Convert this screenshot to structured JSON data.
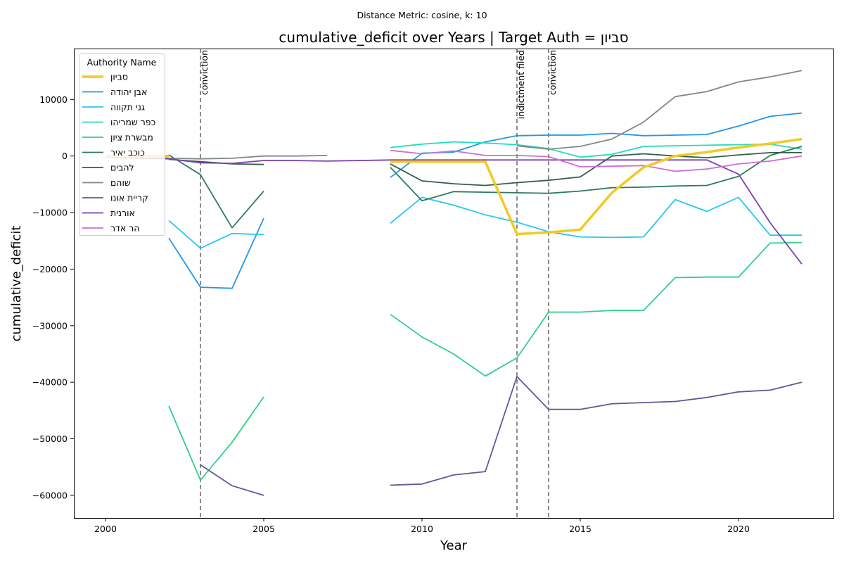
{
  "chart_data": {
    "type": "line",
    "suptitle": "Distance Metric: cosine, k: 10",
    "title": "cumulative_deficit over Years | Target Auth = סביון",
    "xlabel": "Year",
    "ylabel": "cumulative_deficit",
    "xlim": [
      1999,
      2023
    ],
    "ylim": [
      -64000,
      19000
    ],
    "xticks": [
      2000,
      2005,
      2010,
      2015,
      2020
    ],
    "yticks": [
      -60000,
      -50000,
      -40000,
      -30000,
      -20000,
      -10000,
      0,
      10000
    ],
    "legend": {
      "title": "Authority Name",
      "placement": "top-left"
    },
    "events": [
      {
        "x": 2003,
        "label": "conviction"
      },
      {
        "x": 2013,
        "label": "indictment filed"
      },
      {
        "x": 2014,
        "label": "conviction"
      }
    ],
    "series": [
      {
        "name": "סביון",
        "color": "#f2c925",
        "width": 3.5,
        "points": [
          [
            2000,
            0
          ],
          [
            2001,
            0
          ],
          [
            2002,
            0
          ],
          null,
          [
            2009,
            -1000
          ],
          [
            2010,
            -1000
          ],
          [
            2011,
            -1000
          ],
          [
            2012,
            -1000
          ],
          [
            2013,
            -13800
          ],
          [
            2014,
            -13500
          ],
          [
            2015,
            -13000
          ],
          [
            2016,
            -6500
          ],
          [
            2017,
            -2000
          ],
          [
            2018,
            0
          ],
          [
            2019,
            700
          ],
          [
            2020,
            1500
          ],
          [
            2021,
            2200
          ],
          [
            2022,
            3000
          ]
        ]
      },
      {
        "name": "אבן יהודה",
        "color": "#2196e8",
        "width": 1.8,
        "points": [
          [
            2002,
            -14500
          ],
          [
            2003,
            -23200
          ],
          [
            2004,
            -23400
          ],
          [
            2005,
            -11000
          ],
          null,
          [
            2009,
            -3800
          ],
          [
            2010,
            500
          ],
          [
            2011,
            700
          ],
          [
            2012,
            2500
          ],
          [
            2013,
            3600
          ],
          [
            2014,
            3700
          ],
          [
            2015,
            3700
          ],
          [
            2016,
            4000
          ],
          [
            2017,
            3600
          ],
          [
            2018,
            3700
          ],
          [
            2019,
            3800
          ],
          [
            2020,
            5300
          ],
          [
            2021,
            7000
          ],
          [
            2022,
            7600
          ]
        ]
      },
      {
        "name": "גני תקווה",
        "color": "#25c8f0",
        "width": 1.8,
        "points": [
          [
            2002,
            -11400
          ],
          [
            2003,
            -16300
          ],
          [
            2004,
            -13700
          ],
          [
            2005,
            -13900
          ],
          null,
          [
            2009,
            -11900
          ],
          [
            2010,
            -7300
          ],
          [
            2011,
            -8700
          ],
          [
            2012,
            -10400
          ],
          [
            2013,
            -11700
          ],
          [
            2014,
            -13400
          ],
          [
            2015,
            -14300
          ],
          [
            2016,
            -14400
          ],
          [
            2017,
            -14300
          ],
          [
            2018,
            -7700
          ],
          [
            2019,
            -9800
          ],
          [
            2020,
            -7300
          ],
          [
            2021,
            -14000
          ],
          [
            2022,
            -14000
          ]
        ]
      },
      {
        "name": "כפר שמריהו",
        "color": "#26dcbf",
        "width": 1.8,
        "points": [
          [
            2009,
            1500
          ],
          [
            2010,
            2100
          ],
          [
            2011,
            2500
          ],
          [
            2012,
            2300
          ],
          [
            2013,
            2000
          ],
          [
            2014,
            1300
          ],
          [
            2015,
            -200
          ],
          [
            2016,
            300
          ],
          [
            2017,
            1700
          ],
          [
            2018,
            1800
          ],
          [
            2019,
            1900
          ],
          [
            2020,
            2000
          ],
          [
            2021,
            2100
          ],
          [
            2022,
            1200
          ]
        ]
      },
      {
        "name": "מבשרת ציון",
        "color": "#2fd08a",
        "width": 1.8,
        "points": [
          [
            2002,
            -44200
          ],
          [
            2003,
            -57300
          ],
          [
            2004,
            -50600
          ],
          [
            2005,
            -42600
          ],
          null,
          [
            2009,
            -28000
          ],
          [
            2010,
            -32000
          ],
          [
            2011,
            -35000
          ],
          [
            2012,
            -38900
          ],
          [
            2013,
            -35700
          ],
          [
            2014,
            -27600
          ],
          [
            2015,
            -27600
          ],
          [
            2016,
            -27300
          ],
          [
            2017,
            -27300
          ],
          [
            2018,
            -21500
          ],
          [
            2019,
            -21400
          ],
          [
            2020,
            -21400
          ],
          [
            2021,
            -15400
          ],
          [
            2022,
            -15300
          ]
        ]
      },
      {
        "name": "כוכב יאיר",
        "color": "#2f7a5e",
        "width": 1.8,
        "points": [
          [
            2002,
            200
          ],
          [
            2003,
            -3300
          ],
          [
            2004,
            -12700
          ],
          [
            2005,
            -6200
          ],
          null,
          [
            2009,
            -2000
          ],
          [
            2010,
            -7900
          ],
          [
            2011,
            -6300
          ],
          [
            2012,
            -6400
          ],
          [
            2013,
            -6500
          ],
          [
            2014,
            -6600
          ],
          [
            2015,
            -6200
          ],
          [
            2016,
            -5600
          ],
          [
            2017,
            -5500
          ],
          [
            2018,
            -5300
          ],
          [
            2019,
            -5200
          ],
          [
            2020,
            -3600
          ],
          [
            2021,
            100
          ],
          [
            2022,
            1700
          ]
        ]
      },
      {
        "name": "להבים",
        "color": "#335e4a",
        "width": 1.8,
        "points": [
          [
            2002,
            -600
          ],
          [
            2003,
            -1000
          ],
          [
            2004,
            -1400
          ],
          [
            2005,
            -1500
          ],
          null,
          [
            2009,
            -1400
          ],
          [
            2010,
            -4400
          ],
          [
            2011,
            -4900
          ],
          [
            2012,
            -5200
          ],
          [
            2013,
            -4700
          ],
          [
            2014,
            -4300
          ],
          [
            2015,
            -3700
          ],
          [
            2016,
            0
          ],
          [
            2017,
            400
          ],
          [
            2018,
            0
          ],
          [
            2019,
            -300
          ],
          [
            2020,
            200
          ],
          [
            2021,
            600
          ],
          [
            2022,
            600
          ]
        ]
      },
      {
        "name": "שוהם",
        "color": "#7f8a84",
        "width": 1.8,
        "points": [
          [
            2000,
            0
          ],
          [
            2001,
            0
          ],
          [
            2002,
            -400
          ],
          [
            2003,
            -500
          ],
          [
            2004,
            -400
          ],
          [
            2005,
            0
          ],
          [
            2006,
            0
          ],
          [
            2007,
            100
          ],
          null,
          [
            2013,
            1800
          ],
          [
            2014,
            1200
          ],
          [
            2015,
            1700
          ],
          [
            2016,
            3000
          ],
          [
            2017,
            6000
          ],
          [
            2018,
            10500
          ],
          [
            2019,
            11400
          ],
          [
            2020,
            13100
          ],
          [
            2021,
            14000
          ],
          [
            2022,
            15100
          ]
        ]
      },
      {
        "name": "קריית אונו",
        "color": "#5e5a96",
        "width": 1.8,
        "points": [
          [
            2003,
            -54600
          ],
          [
            2004,
            -58300
          ],
          [
            2005,
            -60000
          ],
          null,
          [
            2009,
            -58200
          ],
          [
            2010,
            -58000
          ],
          [
            2011,
            -56400
          ],
          [
            2012,
            -55800
          ],
          [
            2013,
            -39000
          ],
          [
            2014,
            -44800
          ],
          [
            2015,
            -44800
          ],
          [
            2016,
            -43800
          ],
          [
            2017,
            -43600
          ],
          [
            2018,
            -43400
          ],
          [
            2019,
            -42700
          ],
          [
            2020,
            -41700
          ],
          [
            2021,
            -41400
          ],
          [
            2022,
            -40000
          ]
        ]
      },
      {
        "name": "אורנית",
        "color": "#7a3fb0",
        "width": 1.8,
        "points": [
          [
            2000,
            -200
          ],
          [
            2001,
            -400
          ],
          [
            2002,
            -500
          ],
          [
            2003,
            -1200
          ],
          [
            2004,
            -1300
          ],
          [
            2005,
            -800
          ],
          [
            2006,
            -800
          ],
          [
            2007,
            -900
          ],
          [
            2008,
            -800
          ],
          [
            2009,
            -700
          ],
          [
            2010,
            -700
          ],
          [
            2011,
            -700
          ],
          [
            2012,
            -700
          ],
          [
            2013,
            -700
          ],
          [
            2014,
            -700
          ],
          [
            2015,
            -700
          ],
          [
            2016,
            -700
          ],
          [
            2017,
            -700
          ],
          [
            2018,
            -700
          ],
          [
            2019,
            -700
          ],
          [
            2020,
            -3200
          ],
          [
            2021,
            -11800
          ],
          [
            2022,
            -19100
          ]
        ]
      },
      {
        "name": "הר אדר",
        "color": "#cc6ed6",
        "width": 1.8,
        "points": [
          [
            2009,
            1000
          ],
          [
            2010,
            400
          ],
          [
            2011,
            900
          ],
          [
            2012,
            100
          ],
          [
            2013,
            100
          ],
          [
            2014,
            -100
          ],
          [
            2015,
            -1900
          ],
          [
            2016,
            -1800
          ],
          [
            2017,
            -1700
          ],
          [
            2018,
            -2700
          ],
          [
            2019,
            -2300
          ],
          [
            2020,
            -1400
          ],
          [
            2021,
            -900
          ],
          [
            2022,
            0
          ]
        ]
      }
    ]
  }
}
